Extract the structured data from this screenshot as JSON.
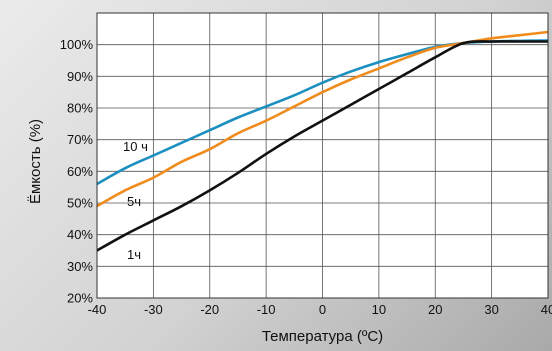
{
  "chart_data": {
    "type": "line",
    "xlabel": "Температура (ºC)",
    "ylabel": "Ёмкость (%)",
    "xlim": [
      -40,
      40
    ],
    "ylim": [
      20,
      110
    ],
    "xticks": [
      -40,
      -30,
      -20,
      -10,
      0,
      10,
      20,
      30,
      40
    ],
    "xtick_labels": [
      "-40",
      "-30",
      "-20",
      "-10",
      "0",
      "10",
      "20",
      "30",
      "40"
    ],
    "yticks": [
      20,
      30,
      40,
      50,
      60,
      70,
      80,
      90,
      100
    ],
    "ytick_labels": [
      "20%",
      "30%",
      "40%",
      "50%",
      "60%",
      "70%",
      "80%",
      "90%",
      "100%"
    ],
    "grid": true,
    "series": [
      {
        "name": "10 ч",
        "color": "#1a8fc0",
        "x": [
          -40,
          -35,
          -30,
          -25,
          -20,
          -15,
          -10,
          -5,
          0,
          5,
          10,
          15,
          20,
          25,
          30,
          35,
          40
        ],
        "y": [
          56,
          61,
          65,
          69,
          73,
          77,
          80.5,
          84,
          88,
          91.5,
          94.5,
          97,
          99.3,
          100.5,
          101,
          101.2,
          101.3
        ]
      },
      {
        "name": "5ч",
        "color": "#f08c1e",
        "x": [
          -40,
          -35,
          -30,
          -25,
          -20,
          -15,
          -10,
          -5,
          0,
          5,
          10,
          15,
          20,
          25,
          30,
          35,
          40
        ],
        "y": [
          49,
          54,
          58,
          63,
          67,
          72,
          76,
          80.5,
          85,
          89,
          92.5,
          96,
          99,
          100.5,
          102,
          103,
          104
        ]
      },
      {
        "name": "1ч",
        "color": "#111111",
        "x": [
          -40,
          -35,
          -30,
          -25,
          -20,
          -15,
          -10,
          -5,
          0,
          5,
          10,
          15,
          20,
          25,
          30,
          35,
          40
        ],
        "y": [
          35,
          40,
          44.5,
          49,
          54,
          59.5,
          65.5,
          71,
          76,
          81,
          86,
          91,
          96,
          100.5,
          101,
          101,
          101
        ]
      }
    ]
  }
}
